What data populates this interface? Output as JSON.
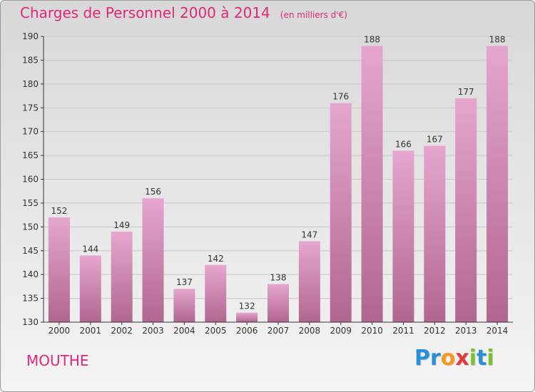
{
  "header": {
    "title": "Charges de Personnel 2000 à 2014",
    "subtitle": "(en milliers d'€)"
  },
  "place": "MOUTHE",
  "brand": {
    "name": "Proxiti",
    "letters": [
      {
        "ch": "P",
        "color": "#2a8fd6"
      },
      {
        "ch": "r",
        "color": "#2a8fd6"
      },
      {
        "ch": "o",
        "color": "#f39a1e"
      },
      {
        "ch": "x",
        "color": "#e23a3a"
      },
      {
        "ch": "i",
        "color": "#7bbf2a"
      },
      {
        "ch": "t",
        "color": "#2a8fd6"
      },
      {
        "ch": "i",
        "color": "#7bbf2a"
      }
    ]
  },
  "colors": {
    "title": "#e0287a",
    "bar_top": "#e6a6cf",
    "bar_bottom": "#b0678f",
    "grid": "#c8c8c8",
    "axis": "#333333"
  },
  "chart_data": {
    "type": "bar",
    "title": "Charges de Personnel 2000 à 2014",
    "subtitle": "(en milliers d'€)",
    "categories": [
      "2000",
      "2001",
      "2002",
      "2003",
      "2004",
      "2005",
      "2006",
      "2007",
      "2008",
      "2009",
      "2010",
      "2011",
      "2012",
      "2013",
      "2014"
    ],
    "values": [
      152,
      144,
      149,
      156,
      137,
      142,
      132,
      138,
      147,
      176,
      188,
      166,
      167,
      177,
      188
    ],
    "ylim": [
      130,
      190
    ],
    "yticks": [
      130,
      135,
      140,
      145,
      150,
      155,
      160,
      165,
      170,
      175,
      180,
      185,
      190
    ],
    "grid": true,
    "data_labels": true
  }
}
